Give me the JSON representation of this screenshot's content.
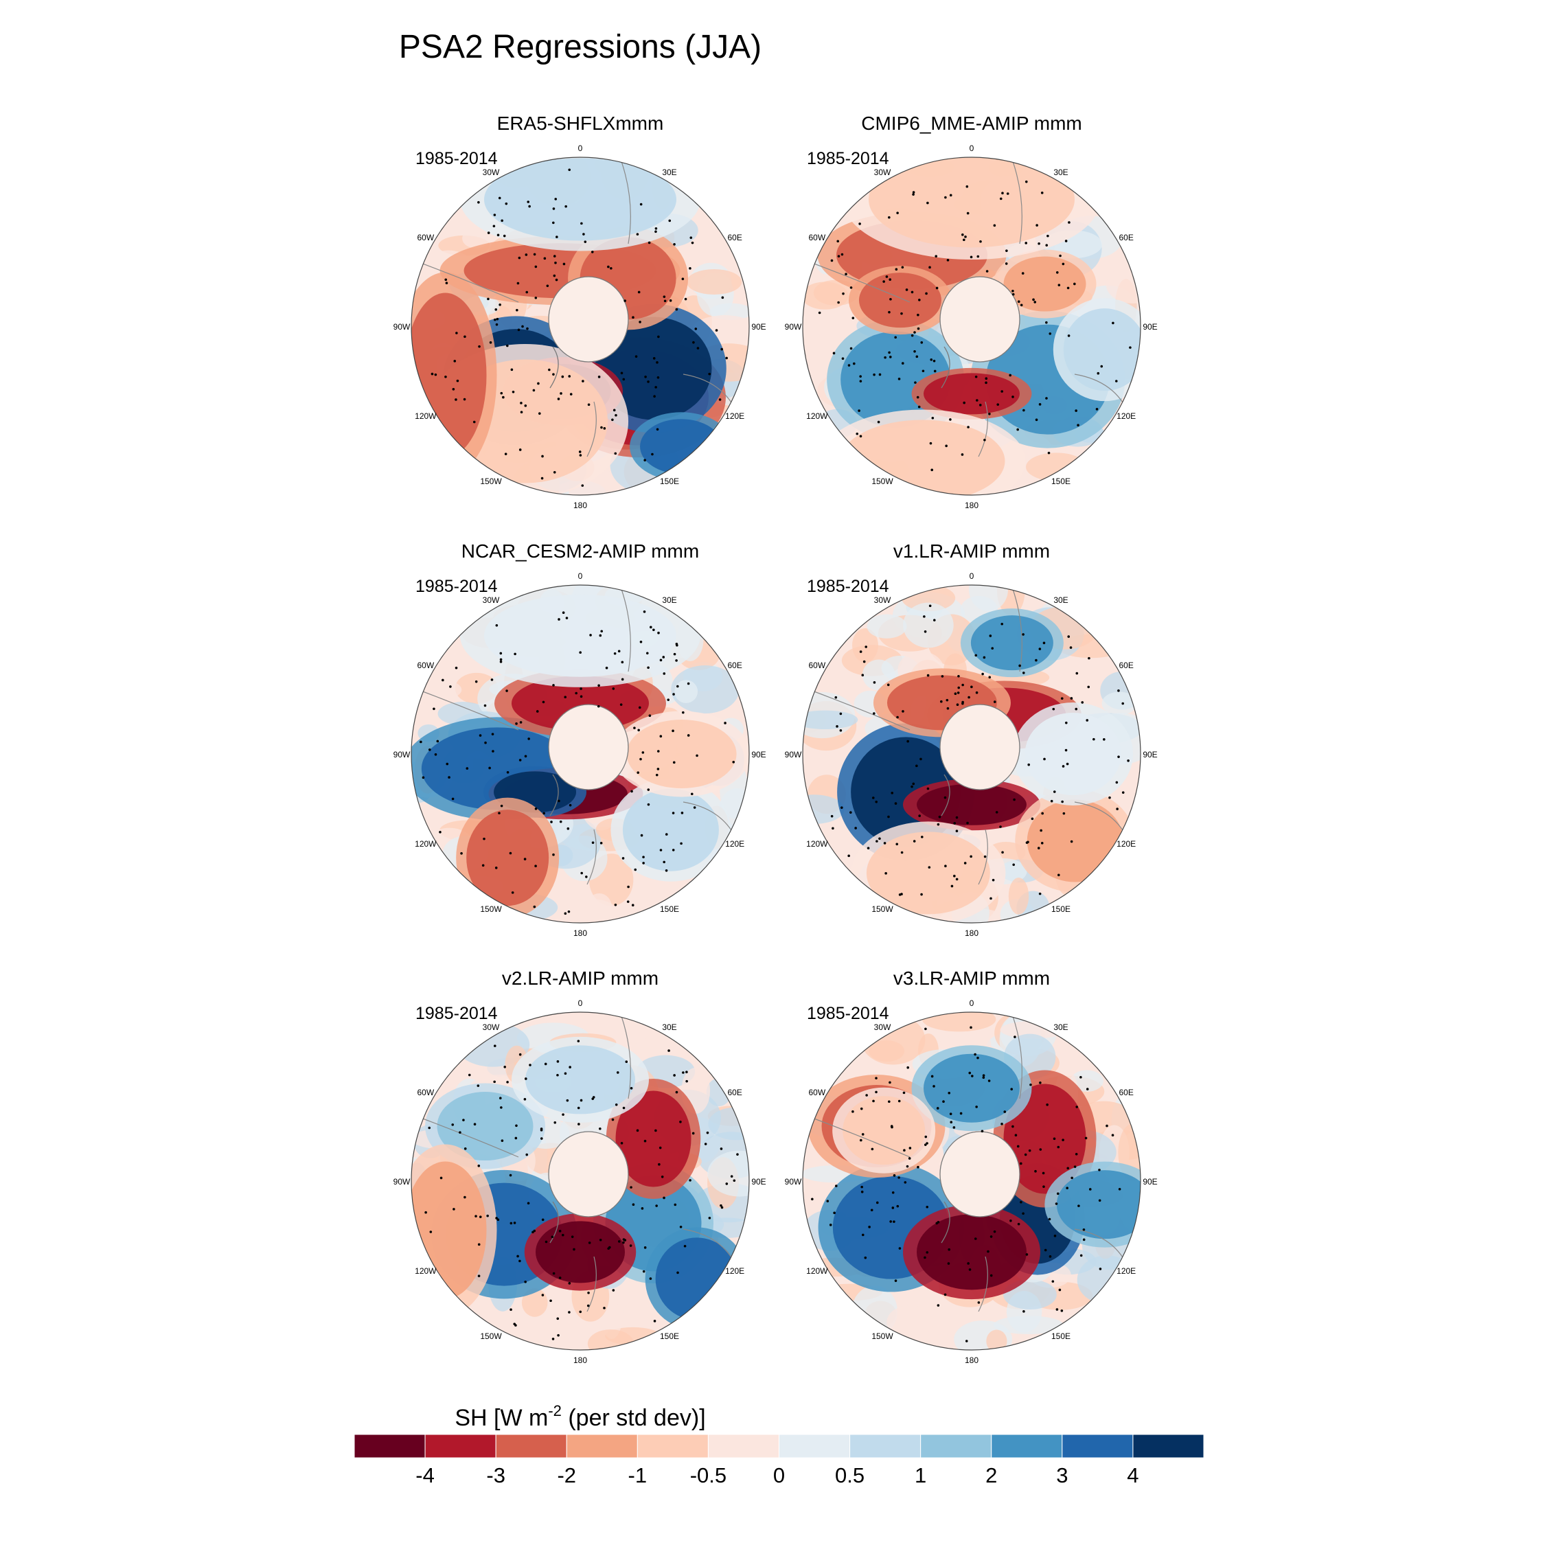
{
  "figure": {
    "title": "PSA2 Regressions (JJA)"
  },
  "period": "1985-2014",
  "lon_labels": {
    "top": "0",
    "bottom": "180",
    "upper_left": "30W",
    "upper_right": "30E",
    "mid_upper_left": "60W",
    "mid_upper_right": "60E",
    "left": "90W",
    "right": "90E",
    "mid_lower_left": "120W",
    "mid_lower_right": "120E",
    "lower_left": "150W",
    "lower_right": "150E"
  },
  "panels": [
    {
      "title": "ERA5-SHFLXmmm"
    },
    {
      "title": "CMIP6_MME-AMIP  mmm"
    },
    {
      "title": "NCAR_CESM2-AMIP  mmm"
    },
    {
      "title": "v1.LR-AMIP  mmm"
    },
    {
      "title": "v2.LR-AMIP  mmm"
    },
    {
      "title": "v3.LR-AMIP  mmm"
    }
  ],
  "colorbar": {
    "title_prefix": "SH [W m",
    "title_exponent": "-2",
    "title_suffix": " (per std dev)]",
    "colors": [
      "#67001f",
      "#b2182b",
      "#d6604d",
      "#f4a582",
      "#fdcdb6",
      "#fbe6df",
      "#e4edf3",
      "#c1dbec",
      "#92c5de",
      "#4393c3",
      "#2166ac",
      "#053061"
    ],
    "tick_labels": [
      "-4",
      "-3",
      "-2",
      "-1",
      "-0.5",
      "0",
      "0.5",
      "1",
      "2",
      "3",
      "4"
    ]
  }
}
